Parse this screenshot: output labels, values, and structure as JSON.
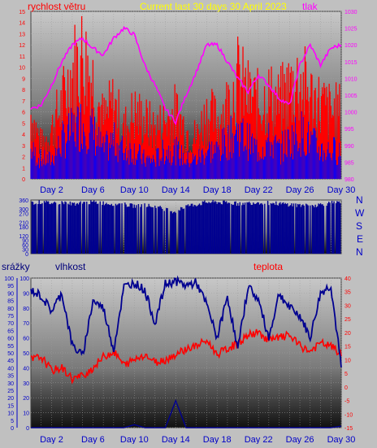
{
  "header": {
    "left_label": "rychlost větru",
    "title": "Current last 30 days 30 April 2023",
    "right_label": "tlak"
  },
  "colors": {
    "background": "#c0c0c0",
    "wind": "#ff0000",
    "gust_inner": "#0000ff",
    "pressure": "#ff00ff",
    "direction": "#000090",
    "humidity": "#000090",
    "temperature": "#ff0000",
    "rain": "#000090",
    "title": "#ffff00",
    "axis_text": "#0000c8",
    "red_text": "#ff0000"
  },
  "x_ticks": [
    "Day 2",
    "Day 6",
    "Day 10",
    "Day 14",
    "Day 18",
    "Day 22",
    "Day 26",
    "Day 30"
  ],
  "mid_right_labels": [
    "N",
    "W",
    "S",
    "E",
    "N"
  ],
  "bottom_labels": {
    "rain": "srážky",
    "humidity": "vlhkost",
    "temperature": "teplota"
  },
  "chart_data": [
    {
      "type": "area",
      "panel": "top",
      "left_axis": {
        "label": "rychlost větru",
        "ticks": [
          0,
          1,
          2,
          3,
          4,
          5,
          6,
          7,
          8,
          9,
          10,
          11,
          12,
          13,
          14,
          15
        ],
        "ylim": [
          0,
          15
        ]
      },
      "right_axis": {
        "label": "tlak",
        "ticks": [
          980,
          985,
          990,
          995,
          1000,
          1005,
          1010,
          1015,
          1020,
          1025,
          1030
        ],
        "ylim": [
          980,
          1030
        ]
      },
      "x": [
        0,
        1,
        2,
        3,
        4,
        5,
        6,
        7,
        8,
        9,
        10,
        11,
        12,
        13,
        14,
        15,
        16,
        17,
        18,
        19,
        20,
        21,
        22,
        23,
        24,
        25,
        26,
        27,
        28,
        29,
        30
      ],
      "series": [
        {
          "name": "rychlost větru",
          "axis": "left",
          "values": [
            8,
            4,
            6,
            9,
            13,
            15,
            12,
            7,
            9,
            6,
            8,
            7,
            6,
            7,
            8,
            6,
            5,
            8,
            7,
            9,
            12,
            10,
            9,
            10,
            9,
            11,
            12,
            10,
            9,
            8,
            8
          ]
        },
        {
          "name": "",
          "axis": "left",
          "values": [
            3,
            2,
            2,
            4,
            5,
            6,
            5,
            3,
            4,
            3,
            3,
            2,
            2,
            3,
            3,
            2,
            2,
            3,
            3,
            4,
            5,
            4,
            3,
            4,
            3,
            4,
            5,
            4,
            3,
            3,
            3
          ]
        },
        {
          "name": "tlak",
          "axis": "right",
          "values": [
            1001,
            1002,
            1008,
            1015,
            1020,
            1022,
            1019,
            1017,
            1022,
            1025,
            1023,
            1014,
            1008,
            1001,
            997,
            1005,
            1012,
            1020,
            1020,
            1015,
            1010,
            1006,
            1011,
            1008,
            1004,
            1002,
            1014,
            1020,
            1014,
            1019,
            1020
          ]
        }
      ]
    },
    {
      "type": "area",
      "panel": "middle",
      "y_axis": {
        "ticks": [
          0,
          30,
          60,
          90,
          120,
          180,
          210,
          270,
          300,
          360
        ],
        "ylim": [
          0,
          360
        ]
      },
      "x": [
        0,
        1,
        2,
        3,
        4,
        5,
        6,
        7,
        8,
        9,
        10,
        11,
        12,
        13,
        14,
        15,
        16,
        17,
        18,
        19,
        20,
        21,
        22,
        23,
        24,
        25,
        26,
        27,
        28,
        29,
        30
      ],
      "series": [
        {
          "name": "",
          "values": [
            340,
            345,
            340,
            345,
            335,
            340,
            345,
            340,
            335,
            330,
            320,
            325,
            315,
            300,
            280,
            320,
            330,
            345,
            345,
            340,
            335,
            340,
            345,
            340,
            335,
            330,
            325,
            320,
            330,
            340,
            340
          ]
        }
      ]
    },
    {
      "type": "line",
      "panel": "bottom",
      "left_axis": {
        "label": "srážky",
        "ticks": [
          0,
          5,
          10,
          15,
          20,
          25,
          30,
          35,
          40,
          45,
          50,
          55,
          60,
          65,
          70,
          75,
          80,
          85,
          90,
          95,
          100
        ],
        "ylim": [
          0,
          100
        ]
      },
      "inner_axis": {
        "label": "vlhkost",
        "ticks": [
          0,
          10,
          20,
          30,
          40,
          50,
          60,
          70,
          80,
          90,
          100
        ],
        "ylim": [
          0,
          100
        ]
      },
      "right_axis": {
        "label": "teplota",
        "ticks": [
          -15,
          -10,
          -5,
          0,
          5,
          10,
          15,
          20,
          25,
          30,
          35,
          40
        ],
        "ylim": [
          -15,
          40
        ]
      },
      "x": [
        0,
        1,
        2,
        3,
        4,
        5,
        6,
        7,
        8,
        9,
        10,
        11,
        12,
        13,
        14,
        15,
        16,
        17,
        18,
        19,
        20,
        21,
        22,
        23,
        24,
        25,
        26,
        27,
        28,
        29,
        30
      ],
      "series": [
        {
          "name": "vlhkost",
          "axis": "inner",
          "values": [
            92,
            88,
            78,
            90,
            55,
            48,
            85,
            80,
            52,
            94,
            97,
            92,
            70,
            96,
            98,
            95,
            97,
            82,
            60,
            88,
            52,
            95,
            85,
            60,
            90,
            80,
            75,
            60,
            90,
            95,
            40
          ]
        },
        {
          "name": "teplota",
          "axis": "right",
          "values": [
            10,
            11,
            6,
            7,
            3,
            4,
            7,
            11,
            13,
            8,
            10,
            12,
            9,
            10,
            12,
            14,
            15,
            17,
            12,
            14,
            16,
            19,
            20,
            17,
            18,
            19,
            15,
            13,
            16,
            15,
            12
          ]
        },
        {
          "name": "srážky",
          "axis": "left",
          "values": [
            0,
            0,
            0,
            0,
            0,
            0,
            0,
            0,
            0,
            0,
            2,
            0,
            0,
            0,
            18,
            0,
            0,
            0,
            0,
            0,
            0,
            0,
            0,
            0,
            0,
            0,
            0,
            0,
            0,
            0,
            1
          ]
        }
      ]
    }
  ]
}
